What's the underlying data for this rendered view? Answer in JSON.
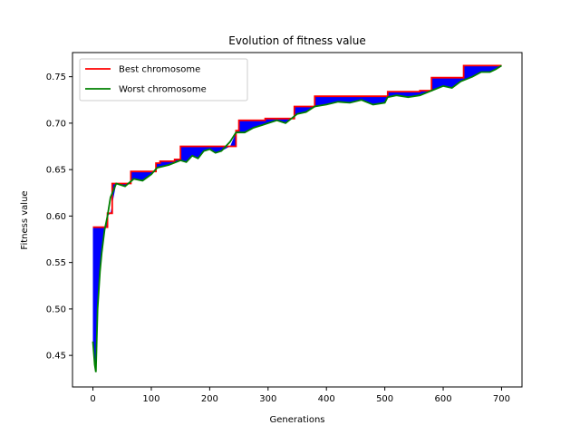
{
  "chart_data": {
    "type": "line",
    "title": "Evolution of fitness value",
    "xlabel": "Generations",
    "ylabel": "Fitness value",
    "xlim": [
      -35,
      735
    ],
    "ylim": [
      0.416,
      0.776
    ],
    "xticks": [
      0,
      100,
      200,
      300,
      400,
      500,
      600,
      700
    ],
    "yticks": [
      0.45,
      0.5,
      0.55,
      0.6,
      0.65,
      0.7,
      0.75
    ],
    "ytick_labels": [
      "0.45",
      "0.50",
      "0.55",
      "0.60",
      "0.65",
      "0.70",
      "0.75"
    ],
    "grid": false,
    "legend_position": "top-left",
    "fill_between": {
      "color": "#0000ff",
      "between": [
        "Best chromosome",
        "Worst chromosome"
      ]
    },
    "series": [
      {
        "name": "Best chromosome",
        "color": "#ff0000",
        "step": true,
        "x": [
          0,
          20,
          25,
          33,
          45,
          65,
          100,
          108,
          115,
          140,
          150,
          200,
          220,
          230,
          245,
          250,
          270,
          295,
          330,
          345,
          350,
          370,
          375,
          380,
          450,
          500,
          505,
          525,
          560,
          575,
          580,
          600,
          635,
          665,
          700
        ],
        "values": [
          0.588,
          0.588,
          0.603,
          0.635,
          0.635,
          0.648,
          0.648,
          0.657,
          0.659,
          0.661,
          0.675,
          0.675,
          0.675,
          0.675,
          0.692,
          0.703,
          0.703,
          0.705,
          0.705,
          0.718,
          0.718,
          0.718,
          0.718,
          0.729,
          0.729,
          0.729,
          0.734,
          0.734,
          0.735,
          0.735,
          0.749,
          0.749,
          0.762,
          0.762,
          0.762
        ]
      },
      {
        "name": "Worst chromosome",
        "color": "#008000",
        "x": [
          0,
          3,
          5,
          8,
          10,
          12,
          15,
          18,
          20,
          25,
          30,
          40,
          55,
          70,
          85,
          100,
          110,
          130,
          150,
          160,
          170,
          180,
          190,
          200,
          210,
          220,
          235,
          245,
          260,
          275,
          290,
          300,
          315,
          330,
          340,
          350,
          365,
          380,
          400,
          420,
          440,
          460,
          480,
          500,
          505,
          520,
          540,
          560,
          580,
          600,
          615,
          630,
          650,
          665,
          680,
          690,
          700
        ],
        "values": [
          0.465,
          0.44,
          0.432,
          0.5,
          0.52,
          0.54,
          0.56,
          0.575,
          0.585,
          0.6,
          0.62,
          0.635,
          0.632,
          0.64,
          0.638,
          0.645,
          0.652,
          0.655,
          0.66,
          0.658,
          0.665,
          0.662,
          0.67,
          0.672,
          0.668,
          0.67,
          0.68,
          0.69,
          0.69,
          0.695,
          0.698,
          0.7,
          0.703,
          0.7,
          0.705,
          0.71,
          0.712,
          0.718,
          0.72,
          0.723,
          0.722,
          0.725,
          0.72,
          0.722,
          0.728,
          0.73,
          0.728,
          0.73,
          0.735,
          0.74,
          0.738,
          0.745,
          0.75,
          0.755,
          0.755,
          0.758,
          0.762
        ]
      }
    ]
  }
}
